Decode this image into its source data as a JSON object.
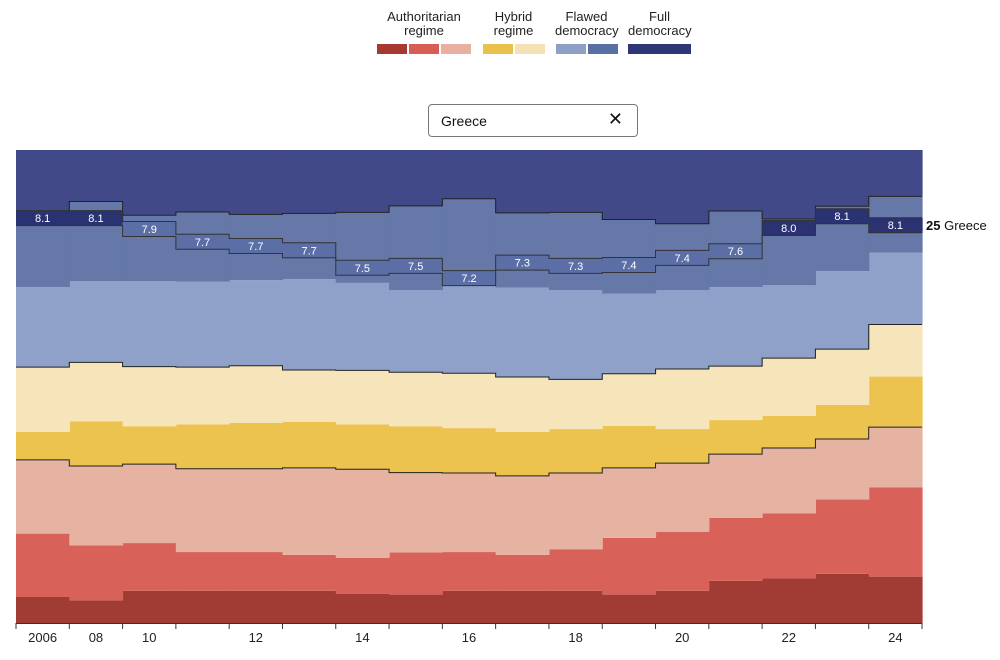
{
  "legend": [
    {
      "label": "Authoritarian\nregime",
      "colors": [
        "#a63a33",
        "#d85e55",
        "#e8b0a1"
      ]
    },
    {
      "label": "Hybrid\nregime",
      "colors": [
        "#e8c24c",
        "#f4e2b4"
      ]
    },
    {
      "label": "Flawed\ndemocracy",
      "colors": [
        "#8fa0c6",
        "#5a6fa3"
      ]
    },
    {
      "label": "Full\ndemocracy",
      "colors": [
        "#2e3677"
      ]
    }
  ],
  "search": {
    "value": "Greece",
    "close_icon": "close-icon"
  },
  "colors": {
    "auth_dark": "#a03c34",
    "auth_mid": "#d8625a",
    "auth_light": "#e6b3a3",
    "hybrid_dark": "#ebc34e",
    "hybrid_light": "#f6e4ba",
    "flawed_light": "#8fa1c8",
    "flawed_dark": "#6578a8",
    "full": "#424988",
    "highlight_flawed": "#5b6ea5",
    "highlight_full": "#2b3272"
  },
  "chart_data": {
    "type": "area",
    "subtype": "stacked step area (share of countries by regime category, 100%)",
    "x": [
      2006,
      2008,
      2010,
      2011,
      2012,
      2013,
      2014,
      2015,
      2016,
      2017,
      2018,
      2019,
      2020,
      2021,
      2022,
      2023,
      2024
    ],
    "x_tick_labels": [
      "2006",
      "08",
      "10",
      "12",
      "14",
      "16",
      "18",
      "20",
      "22",
      "24"
    ],
    "x_tick_years": [
      2006,
      2008,
      2010,
      2012,
      2014,
      2016,
      2018,
      2020,
      2022,
      2024
    ],
    "ylim": [
      0,
      100
    ],
    "series": [
      {
        "name": "Authoritarian regime (darkest)",
        "color_key": "auth_dark",
        "values": [
          5.5,
          4.8,
          6.8,
          6.8,
          6.8,
          6.8,
          6.2,
          6.0,
          6.8,
          6.8,
          6.8,
          6.0,
          6.8,
          8.9,
          9.4,
          10.4,
          9.8
        ]
      },
      {
        "name": "Authoritarian regime (mid)",
        "color_key": "auth_mid",
        "values": [
          13.4,
          11.6,
          10.1,
          8.2,
          8.2,
          7.6,
          7.6,
          8.9,
          8.2,
          7.6,
          8.8,
          12.0,
          12.5,
          13.3,
          13.8,
          15.7,
          18.9
        ]
      },
      {
        "name": "Authoritarian regime (light)",
        "color_key": "auth_light",
        "values": [
          15.6,
          16.8,
          16.7,
          17.6,
          17.6,
          18.4,
          18.7,
          16.9,
          16.7,
          16.7,
          16.1,
          14.8,
          14.5,
          13.5,
          13.8,
          12.8,
          12.7
        ]
      },
      {
        "name": "Hybrid regime (dark)",
        "color_key": "hybrid_dark",
        "values": [
          5.9,
          9.4,
          8.0,
          9.4,
          9.7,
          9.7,
          9.5,
          9.8,
          9.5,
          9.3,
          9.3,
          8.9,
          7.2,
          7.2,
          6.8,
          7.2,
          10.7
        ]
      },
      {
        "name": "Hybrid regime (light)",
        "color_key": "hybrid_light",
        "values": [
          13.7,
          12.5,
          12.6,
          12.1,
          12.1,
          11.0,
          11.4,
          11.4,
          11.6,
          11.6,
          10.5,
          11.0,
          12.7,
          11.4,
          12.2,
          11.8,
          11.0
        ]
      },
      {
        "name": "Flawed democracy (light)",
        "color_key": "flawed_light",
        "values": [
          16.9,
          17.2,
          18.1,
          18.1,
          18.1,
          19.2,
          18.5,
          17.4,
          18.9,
          18.9,
          18.9,
          16.9,
          16.7,
          16.7,
          15.4,
          16.5,
          15.2
        ]
      },
      {
        "name": "Flawed democracy (dark)",
        "color_key": "flawed_dark",
        "values": [
          15.1,
          16.8,
          13.9,
          14.7,
          13.9,
          13.9,
          14.9,
          17.8,
          18.0,
          15.8,
          16.4,
          15.7,
          14.0,
          16.1,
          14.0,
          13.7,
          11.9
        ]
      },
      {
        "name": "Full democracy",
        "color_key": "full",
        "values": [
          13.9,
          10.9,
          13.8,
          13.1,
          13.6,
          13.4,
          13.2,
          11.8,
          10.3,
          13.3,
          13.2,
          14.7,
          15.6,
          12.3,
          16.5,
          11.9,
          9.8
        ]
      }
    ],
    "highlight": {
      "country": "Greece",
      "end_rank": "25",
      "end_name": "Greece",
      "scores": [
        "8.1",
        "8.1",
        "7.9",
        "7.7",
        "7.7",
        "7.7",
        "7.5",
        "7.5",
        "7.2",
        "7.3",
        "7.3",
        "7.4",
        "7.4",
        "7.6",
        "8.0",
        "8.1",
        "8.1"
      ],
      "rank_position_pct": [
        85.6,
        85.6,
        83.3,
        80.6,
        79.7,
        78.8,
        75.1,
        75.5,
        72.9,
        76.2,
        75.5,
        75.7,
        77.2,
        78.6,
        83.5,
        86.0,
        84.1
      ],
      "full_democracy_threshold": 8.0
    }
  }
}
